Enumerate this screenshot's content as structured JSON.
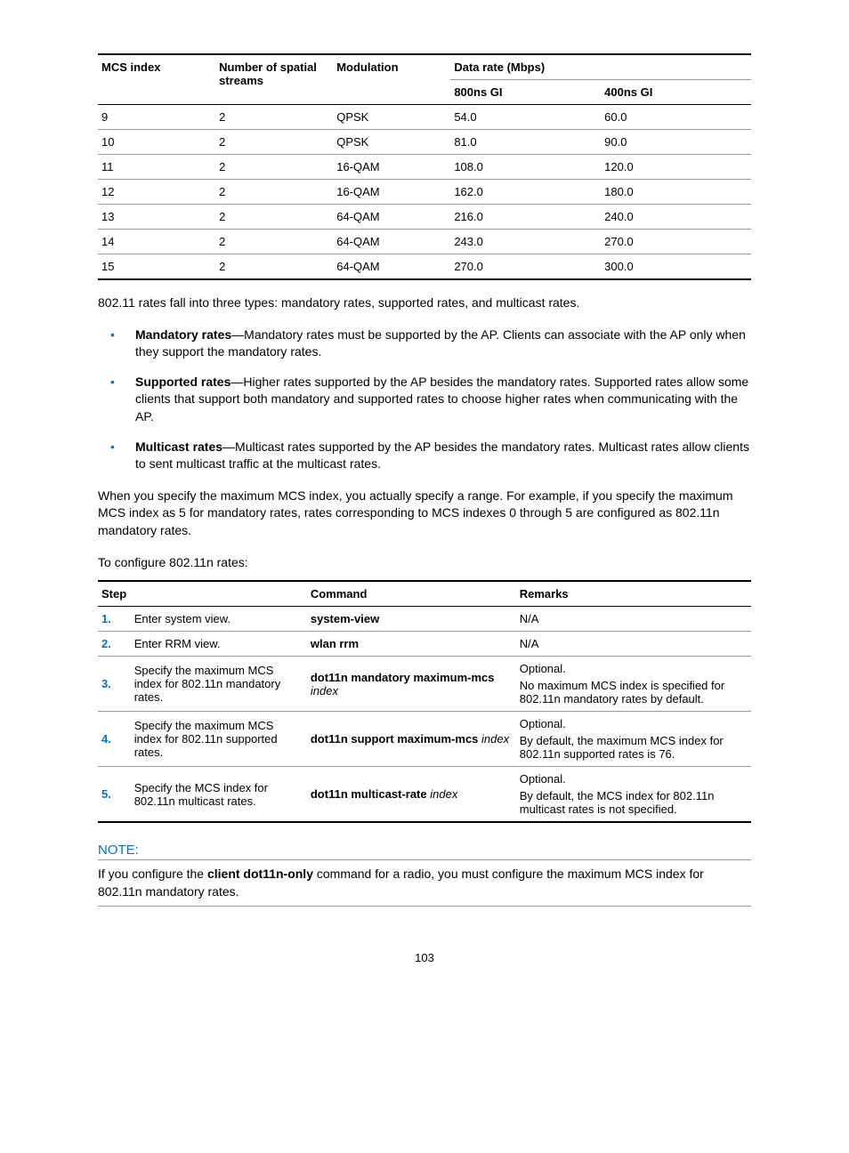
{
  "mcs_table": {
    "headers": {
      "mcs": "MCS index",
      "streams": "Number of spatial streams",
      "mod": "Modulation",
      "datarate": "Data rate (Mbps)",
      "gi800": "800ns GI",
      "gi400": "400ns GI"
    },
    "rows": [
      {
        "mcs": "9",
        "streams": "2",
        "mod": "QPSK",
        "r800": "54.0",
        "r400": "60.0"
      },
      {
        "mcs": "10",
        "streams": "2",
        "mod": "QPSK",
        "r800": "81.0",
        "r400": "90.0"
      },
      {
        "mcs": "11",
        "streams": "2",
        "mod": "16-QAM",
        "r800": "108.0",
        "r400": "120.0"
      },
      {
        "mcs": "12",
        "streams": "2",
        "mod": "16-QAM",
        "r800": "162.0",
        "r400": "180.0"
      },
      {
        "mcs": "13",
        "streams": "2",
        "mod": "64-QAM",
        "r800": "216.0",
        "r400": "240.0"
      },
      {
        "mcs": "14",
        "streams": "2",
        "mod": "64-QAM",
        "r800": "243.0",
        "r400": "270.0"
      },
      {
        "mcs": "15",
        "streams": "2",
        "mod": "64-QAM",
        "r800": "270.0",
        "r400": "300.0"
      }
    ],
    "col_widths": [
      "18%",
      "18%",
      "18%",
      "23%",
      "23%"
    ]
  },
  "intro_para": "802.11 rates fall into three types: mandatory rates, supported rates, and multicast rates.",
  "bullets": [
    {
      "term": "Mandatory rates",
      "desc": "—Mandatory rates must be supported by the AP. Clients can associate with the AP only when they support the mandatory rates."
    },
    {
      "term": "Supported rates",
      "desc": "—Higher rates supported by the AP besides the mandatory rates. Supported rates allow some clients that support both mandatory and supported rates to choose higher rates when communicating with the AP."
    },
    {
      "term": "Multicast rates",
      "desc": "—Multicast rates supported by the AP besides the mandatory rates. Multicast rates allow clients to sent multicast traffic at the multicast rates."
    }
  ],
  "range_para": "When you specify the maximum MCS index, you actually specify a range. For example, if you specify the maximum MCS index as 5 for mandatory rates, rates corresponding to MCS indexes 0 through 5 are configured as 802.11n mandatory rates.",
  "config_intro": "To configure 802.11n rates:",
  "steps_table": {
    "headers": {
      "step": "Step",
      "command": "Command",
      "remarks": "Remarks"
    },
    "col_widths": [
      "5%",
      "27%",
      "32%",
      "36%"
    ],
    "rows": [
      {
        "num": "1.",
        "action": "Enter system view.",
        "cmd_bold": "system-view",
        "cmd_ital": "",
        "opt": "",
        "body": "N/A"
      },
      {
        "num": "2.",
        "action": "Enter RRM view.",
        "cmd_bold": "wlan rrm",
        "cmd_ital": "",
        "opt": "",
        "body": "N/A"
      },
      {
        "num": "3.",
        "action": "Specify the maximum MCS index for 802.11n mandatory rates.",
        "cmd_bold": "dot11n mandatory maximum-mcs",
        "cmd_ital": " index",
        "opt": "Optional.",
        "body": "No maximum MCS index is specified for 802.11n mandatory rates by default."
      },
      {
        "num": "4.",
        "action": "Specify the maximum MCS index for 802.11n supported rates.",
        "cmd_bold": "dot11n support maximum-mcs",
        "cmd_ital": " index",
        "opt": "Optional.",
        "body": "By default, the maximum MCS index for 802.11n supported rates is 76."
      },
      {
        "num": "5.",
        "action": "Specify the MCS index for 802.11n multicast rates.",
        "cmd_bold": "dot11n multicast-rate",
        "cmd_ital": " index",
        "opt": "Optional.",
        "body": "By default, the MCS index for 802.11n multicast rates is not specified."
      }
    ]
  },
  "note": {
    "title": "NOTE:",
    "pre": "If you configure the ",
    "bold": "client dot11n-only",
    "post": " command for a radio, you must configure the maximum MCS index for 802.11n mandatory rates."
  },
  "page_number": "103"
}
